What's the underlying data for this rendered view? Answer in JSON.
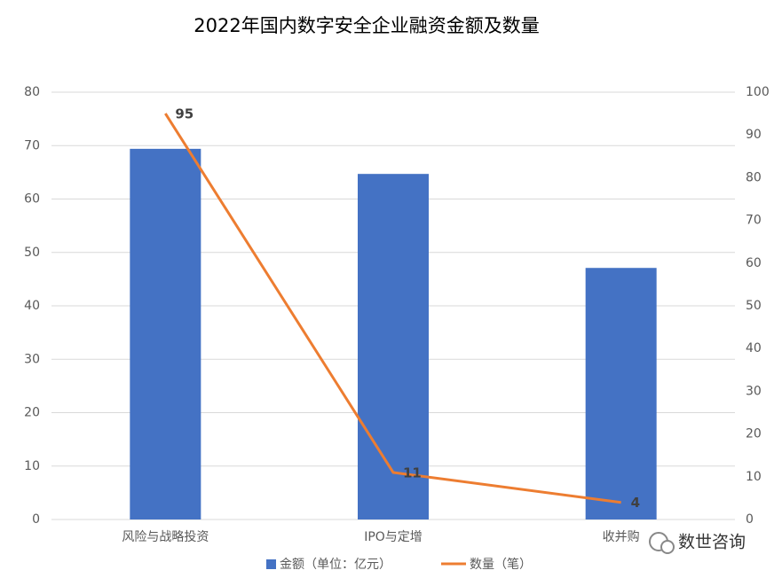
{
  "chart_data": {
    "type": "bar",
    "title": "2022年国内数字安全企业融资金额及数量",
    "categories": [
      "风险与战略投资",
      "IPO与定增",
      "收并购"
    ],
    "series": [
      {
        "name": "金额（单位：亿元）",
        "type": "bar",
        "color": "#4472c4",
        "values": [
          69.4,
          64.7,
          47.1
        ]
      },
      {
        "name": "数量（笔）",
        "type": "line",
        "color": "#ed7d31",
        "axis": "y2",
        "values": [
          95,
          11,
          4
        ],
        "data_labels": true
      }
    ],
    "ylim": [
      0,
      80
    ],
    "yticks": [
      0,
      10,
      20,
      30,
      40,
      50,
      60,
      70,
      80
    ],
    "y2lim": [
      0,
      100
    ],
    "y2ticks": [
      0,
      10,
      20,
      30,
      40,
      50,
      60,
      70,
      80,
      90,
      100
    ],
    "grid": true,
    "legend": "bottom",
    "watermark": "数世咨询"
  }
}
